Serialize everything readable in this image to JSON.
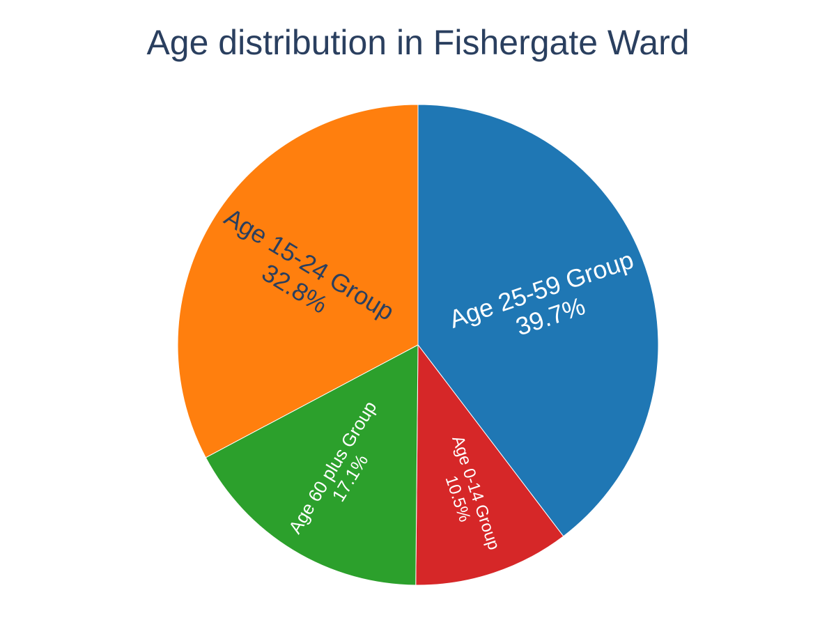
{
  "chart_data": {
    "type": "pie",
    "title": "Age distribution in Fishergate Ward",
    "slices": [
      {
        "label": "Age 25-59 Group",
        "percent_label": "39.7%",
        "value": 39.7,
        "color": "#1f77b4",
        "text_color": "#ffffff"
      },
      {
        "label": "Age 0-14 Group",
        "percent_label": "10.5%",
        "value": 10.5,
        "color": "#d62728",
        "text_color": "#ffffff"
      },
      {
        "label": "Age 60 plus Group",
        "percent_label": "17.1%",
        "value": 17.1,
        "color": "#2ca02c",
        "text_color": "#ffffff"
      },
      {
        "label": "Age 15-24 Group",
        "percent_label": "32.8%",
        "value": 32.8,
        "color": "#ff7f0e",
        "text_color": "#2a3f5f"
      }
    ]
  }
}
